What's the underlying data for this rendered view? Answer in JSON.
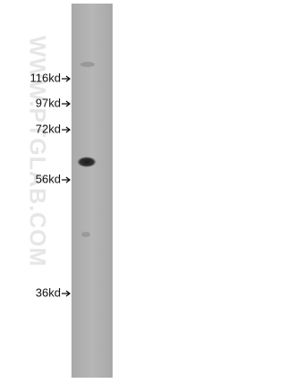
{
  "watermark": "WWW.PTGLAB.COM",
  "markers": [
    {
      "label": "116kd"
    },
    {
      "label": "97kd"
    },
    {
      "label": "72kd"
    },
    {
      "label": "56kd"
    },
    {
      "label": "36kd"
    }
  ]
}
